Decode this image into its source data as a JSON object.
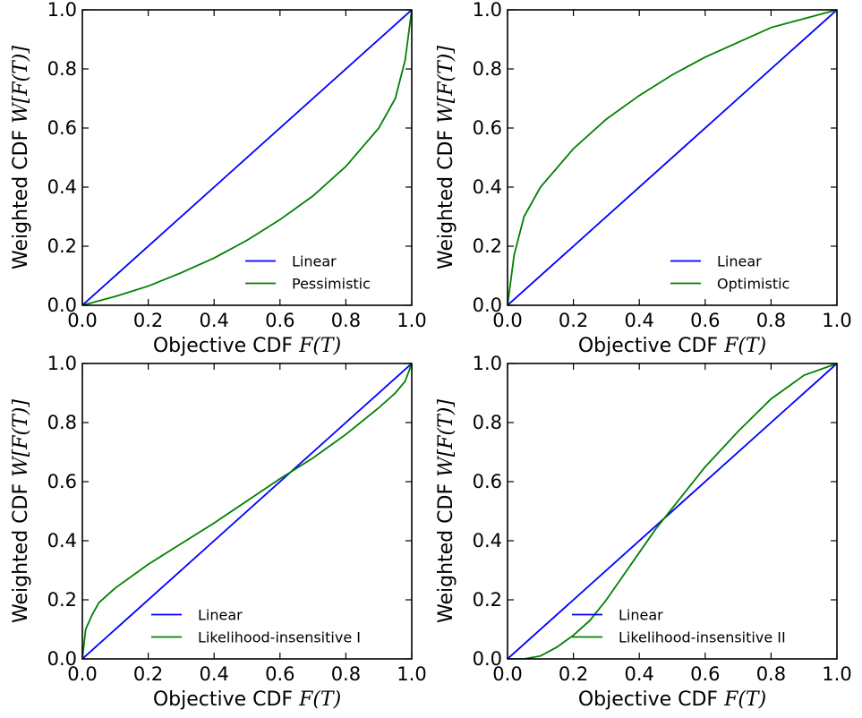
{
  "chart_data": [
    {
      "type": "line",
      "xlabel": "Objective CDF",
      "xlabel_math": "F(T)",
      "ylabel": "Weighted CDF",
      "ylabel_math": "W[F(T)]",
      "xlim": [
        0.0,
        1.0
      ],
      "ylim": [
        0.0,
        1.0
      ],
      "xticks": [
        "0.0",
        "0.2",
        "0.4",
        "0.6",
        "0.8",
        "1.0"
      ],
      "yticks": [
        "0.0",
        "0.2",
        "0.4",
        "0.6",
        "0.8",
        "1.0"
      ],
      "grid": false,
      "legend_position": "bottom-right",
      "series": [
        {
          "name": "Linear",
          "color": "#0000ff",
          "x": [
            0,
            1
          ],
          "y": [
            0,
            1
          ]
        },
        {
          "name": "Pessimistic",
          "color": "#008000",
          "x": [
            0.0,
            0.1,
            0.2,
            0.3,
            0.4,
            0.5,
            0.6,
            0.7,
            0.8,
            0.9,
            0.95,
            0.98,
            1.0
          ],
          "y": [
            0.0,
            0.03,
            0.065,
            0.11,
            0.16,
            0.22,
            0.29,
            0.37,
            0.47,
            0.6,
            0.7,
            0.83,
            1.0
          ]
        }
      ]
    },
    {
      "type": "line",
      "xlabel": "Objective CDF",
      "xlabel_math": "F(T)",
      "ylabel": "Weighted CDF",
      "ylabel_math": "W[F(T)]",
      "xlim": [
        0.0,
        1.0
      ],
      "ylim": [
        0.0,
        1.0
      ],
      "xticks": [
        "0.0",
        "0.2",
        "0.4",
        "0.6",
        "0.8",
        "1.0"
      ],
      "yticks": [
        "0.0",
        "0.2",
        "0.4",
        "0.6",
        "0.8",
        "1.0"
      ],
      "grid": false,
      "legend_position": "bottom-right",
      "series": [
        {
          "name": "Linear",
          "color": "#0000ff",
          "x": [
            0,
            1
          ],
          "y": [
            0,
            1
          ]
        },
        {
          "name": "Optimistic",
          "color": "#008000",
          "x": [
            0.0,
            0.02,
            0.05,
            0.1,
            0.2,
            0.3,
            0.4,
            0.5,
            0.6,
            0.7,
            0.8,
            0.9,
            1.0
          ],
          "y": [
            0.0,
            0.17,
            0.3,
            0.4,
            0.53,
            0.63,
            0.71,
            0.78,
            0.84,
            0.89,
            0.94,
            0.97,
            1.0
          ]
        }
      ]
    },
    {
      "type": "line",
      "xlabel": "Objective CDF",
      "xlabel_math": "F(T)",
      "ylabel": "Weighted CDF",
      "ylabel_math": "W[F(T)]",
      "xlim": [
        0.0,
        1.0
      ],
      "ylim": [
        0.0,
        1.0
      ],
      "xticks": [
        "0.0",
        "0.2",
        "0.4",
        "0.6",
        "0.8",
        "1.0"
      ],
      "yticks": [
        "0.0",
        "0.2",
        "0.4",
        "0.6",
        "0.8",
        "1.0"
      ],
      "grid": false,
      "legend_position": "bottom-right",
      "series": [
        {
          "name": "Linear",
          "color": "#0000ff",
          "x": [
            0,
            1
          ],
          "y": [
            0,
            1
          ]
        },
        {
          "name": "Likelihood-insensitive I",
          "color": "#008000",
          "x": [
            0.0,
            0.01,
            0.03,
            0.05,
            0.1,
            0.2,
            0.3,
            0.4,
            0.5,
            0.6,
            0.7,
            0.8,
            0.9,
            0.95,
            0.98,
            1.0
          ],
          "y": [
            0.0,
            0.1,
            0.15,
            0.19,
            0.24,
            0.32,
            0.39,
            0.46,
            0.535,
            0.61,
            0.68,
            0.76,
            0.85,
            0.9,
            0.94,
            1.0
          ]
        }
      ]
    },
    {
      "type": "line",
      "xlabel": "Objective CDF",
      "xlabel_math": "F(T)",
      "ylabel": "Weighted CDF",
      "ylabel_math": "W[F(T)]",
      "xlim": [
        0.0,
        1.0
      ],
      "ylim": [
        0.0,
        1.0
      ],
      "xticks": [
        "0.0",
        "0.2",
        "0.4",
        "0.6",
        "0.8",
        "1.0"
      ],
      "yticks": [
        "0.0",
        "0.2",
        "0.4",
        "0.6",
        "0.8",
        "1.0"
      ],
      "grid": false,
      "legend_position": "bottom-right",
      "series": [
        {
          "name": "Linear",
          "color": "#0000ff",
          "x": [
            0,
            1
          ],
          "y": [
            0,
            1
          ]
        },
        {
          "name": "Likelihood-insensitive II",
          "color": "#008000",
          "x": [
            0.0,
            0.05,
            0.1,
            0.15,
            0.2,
            0.25,
            0.3,
            0.35,
            0.4,
            0.45,
            0.5,
            0.55,
            0.6,
            0.7,
            0.8,
            0.9,
            1.0
          ],
          "y": [
            0.0,
            0.0,
            0.01,
            0.04,
            0.08,
            0.13,
            0.2,
            0.28,
            0.36,
            0.44,
            0.51,
            0.58,
            0.65,
            0.77,
            0.88,
            0.96,
            1.0
          ]
        }
      ]
    }
  ]
}
